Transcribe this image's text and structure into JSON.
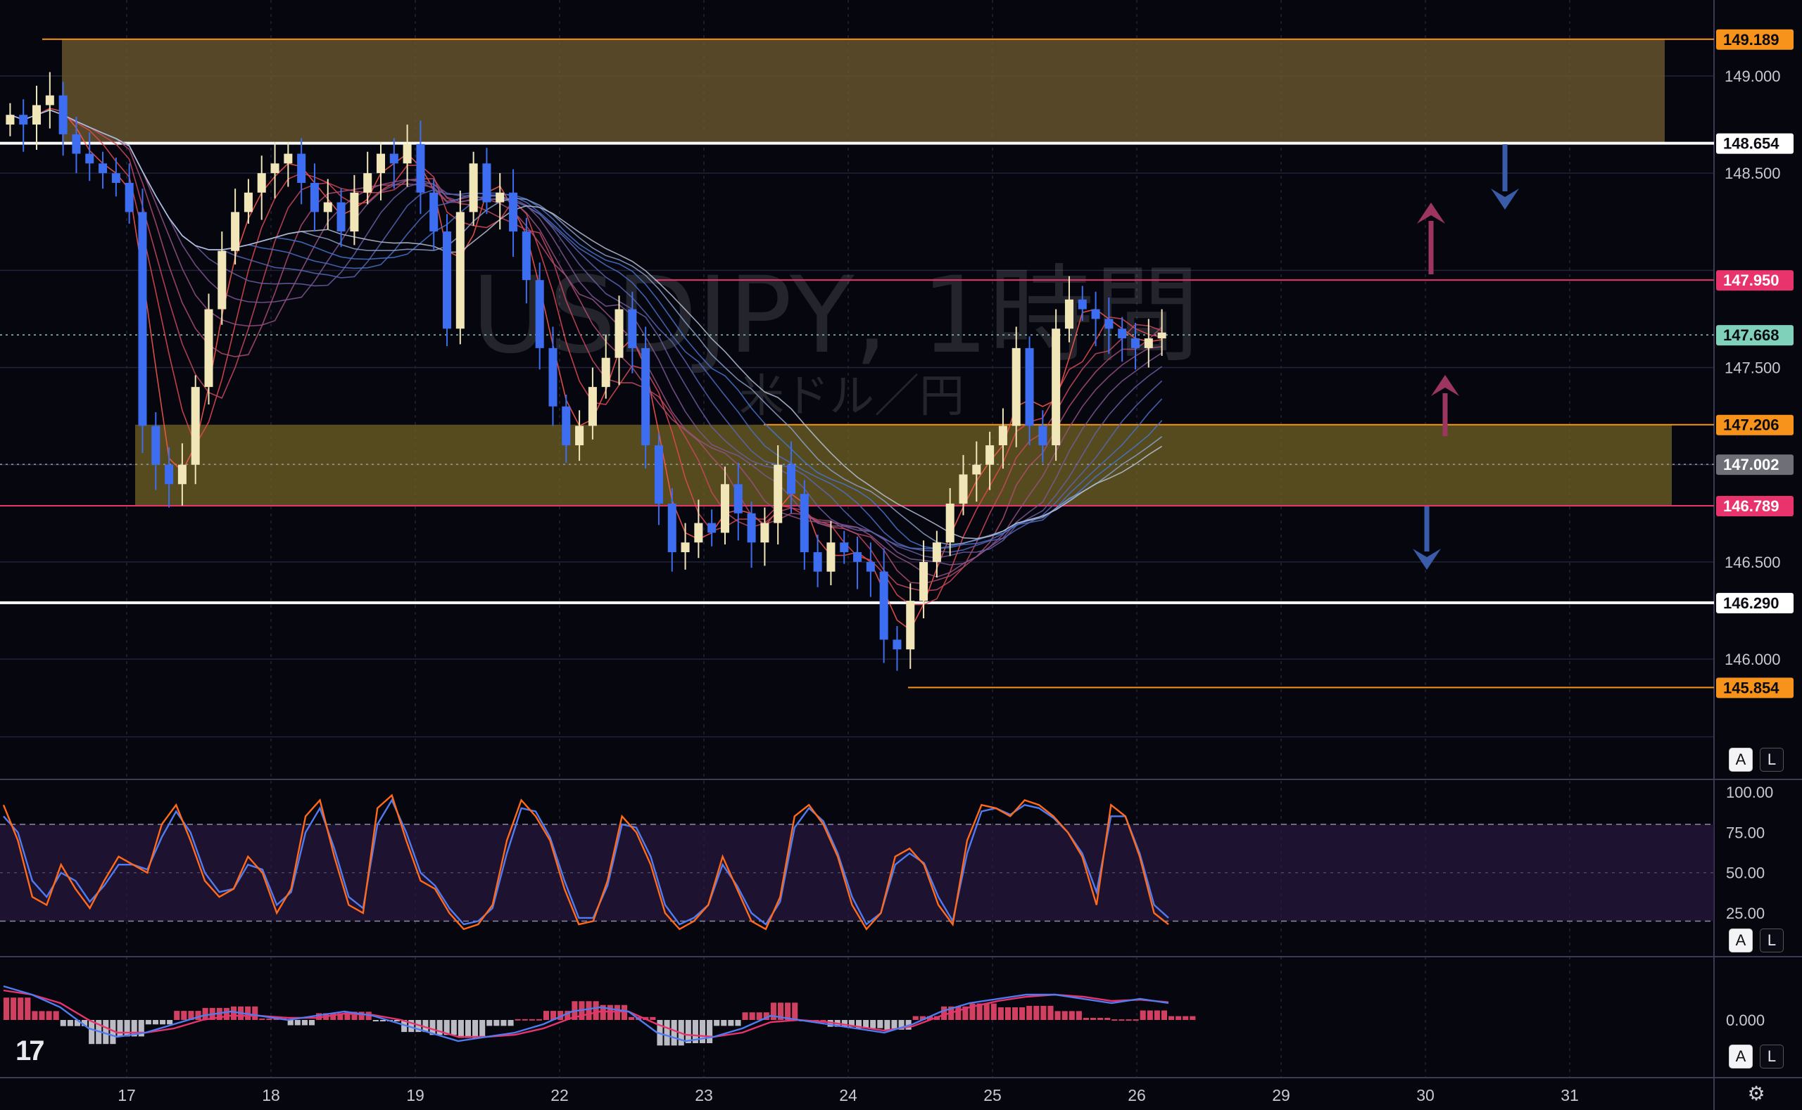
{
  "chart_data": [
    {
      "type": "candlestick",
      "title": "USDJPY, 1時間",
      "subtitle": "米ドル／円",
      "x_ticks": [
        "17",
        "18",
        "19",
        "22",
        "23",
        "24",
        "25",
        "26",
        "29",
        "30",
        "31"
      ],
      "y_ticks": [
        "146.000",
        "146.500",
        "147.500",
        "148.500",
        "149.000"
      ],
      "ylim": [
        145.6,
        149.4
      ],
      "price_labels": [
        {
          "value": "149.189",
          "color": "#f7931a"
        },
        {
          "value": "148.654",
          "color": "#ffffff"
        },
        {
          "value": "147.950",
          "color": "#e8336d"
        },
        {
          "value": "147.668",
          "color": "#7fd1b9"
        },
        {
          "value": "147.206",
          "color": "#f7931a"
        },
        {
          "value": "147.002",
          "color": "#6f6f78"
        },
        {
          "value": "146.789",
          "color": "#e8336d"
        },
        {
          "value": "146.290",
          "color": "#ffffff"
        },
        {
          "value": "145.854",
          "color": "#f7931a"
        }
      ],
      "zones": [
        {
          "name": "upper-resistance-zone",
          "from": 148.654,
          "to": 149.189,
          "color": "#6b5a2e"
        },
        {
          "name": "middle-zone",
          "from": 146.789,
          "to": 147.206,
          "color": "#6b5f22"
        }
      ],
      "horizontal_lines": [
        148.654,
        146.29,
        147.95,
        146.789,
        147.206,
        145.854,
        149.189
      ],
      "arrows": [
        {
          "direction": "down",
          "color": "#3a5ca8",
          "session": "30-31",
          "level": "148.654"
        },
        {
          "direction": "up",
          "color": "#9c3560",
          "session": "30",
          "level": "147.950"
        },
        {
          "direction": "up",
          "color": "#9c3560",
          "session": "30",
          "level": "147.206"
        },
        {
          "direction": "down",
          "color": "#3a5ca8",
          "session": "30",
          "level": "146.789"
        }
      ],
      "colors": {
        "up": "#f0e6b8",
        "down": "#3d6df0"
      },
      "closes": [
        148.8,
        148.75,
        148.85,
        148.9,
        148.7,
        148.6,
        148.55,
        148.5,
        148.45,
        148.3,
        147.2,
        147.0,
        146.9,
        147.0,
        147.4,
        147.8,
        148.1,
        148.3,
        148.4,
        148.5,
        148.55,
        148.6,
        148.45,
        148.3,
        148.35,
        148.2,
        148.4,
        148.5,
        148.6,
        148.55,
        148.65,
        148.4,
        148.2,
        147.7,
        148.3,
        148.55,
        148.35,
        148.4,
        148.2,
        147.95,
        147.6,
        147.3,
        147.1,
        147.2,
        147.4,
        147.55,
        147.8,
        147.6,
        147.1,
        146.8,
        146.55,
        146.6,
        146.7,
        146.65,
        146.9,
        146.75,
        146.6,
        146.7,
        147.0,
        146.85,
        146.55,
        146.45,
        146.6,
        146.55,
        146.5,
        146.45,
        146.1,
        146.05,
        146.3,
        146.5,
        146.6,
        146.8,
        146.95,
        147.0,
        147.1,
        147.2,
        147.6,
        147.2,
        147.1,
        147.7,
        147.85,
        147.8,
        147.75,
        147.7,
        147.65,
        147.6,
        147.65,
        147.68
      ],
      "stochastic_ticks": [
        "100.00",
        "75.00",
        "50.00",
        "25.00"
      ],
      "stoch_k": [
        92,
        70,
        35,
        30,
        55,
        40,
        28,
        45,
        60,
        55,
        50,
        80,
        92,
        70,
        45,
        35,
        40,
        60,
        50,
        25,
        40,
        85,
        95,
        60,
        30,
        25,
        90,
        98,
        70,
        45,
        40,
        25,
        15,
        18,
        30,
        70,
        95,
        85,
        70,
        40,
        18,
        20,
        45,
        85,
        75,
        55,
        25,
        15,
        20,
        30,
        60,
        40,
        20,
        15,
        35,
        85,
        92,
        80,
        60,
        30,
        15,
        25,
        60,
        65,
        55,
        30,
        18,
        70,
        92,
        90,
        85,
        95,
        92,
        85,
        75,
        60,
        30,
        92,
        85,
        60,
        25,
        18
      ],
      "stoch_d": [
        85,
        75,
        45,
        35,
        50,
        45,
        32,
        42,
        55,
        55,
        52,
        72,
        88,
        75,
        50,
        38,
        40,
        55,
        52,
        30,
        38,
        75,
        90,
        65,
        35,
        28,
        80,
        95,
        75,
        50,
        42,
        28,
        18,
        20,
        28,
        62,
        90,
        88,
        72,
        45,
        22,
        22,
        42,
        80,
        78,
        60,
        30,
        18,
        22,
        30,
        55,
        42,
        25,
        18,
        32,
        78,
        90,
        82,
        62,
        35,
        18,
        25,
        55,
        62,
        56,
        35,
        20,
        62,
        88,
        90,
        86,
        92,
        90,
        84,
        75,
        62,
        38,
        85,
        85,
        62,
        30,
        22
      ],
      "macd_line": [
        0.8,
        0.6,
        0.3,
        -0.2,
        -0.4,
        -0.3,
        -0.1,
        0.1,
        0.2,
        0.1,
        0.0,
        0.1,
        0.2,
        0.1,
        -0.1,
        -0.3,
        -0.5,
        -0.4,
        -0.3,
        -0.1,
        0.2,
        0.3,
        0.2,
        -0.3,
        -0.5,
        -0.4,
        -0.2,
        0.1,
        0.0,
        -0.1,
        -0.2,
        -0.3,
        -0.1,
        0.2,
        0.4,
        0.5,
        0.6,
        0.6,
        0.5,
        0.4,
        0.5,
        0.4
      ],
      "macd_signal": [
        0.7,
        0.6,
        0.4,
        0.0,
        -0.3,
        -0.3,
        -0.2,
        0.0,
        0.1,
        0.1,
        0.05,
        0.05,
        0.15,
        0.12,
        0.0,
        -0.2,
        -0.4,
        -0.4,
        -0.35,
        -0.2,
        0.05,
        0.2,
        0.2,
        -0.1,
        -0.35,
        -0.4,
        -0.3,
        -0.05,
        0.0,
        -0.05,
        -0.15,
        -0.25,
        -0.15,
        0.1,
        0.3,
        0.45,
        0.55,
        0.6,
        0.55,
        0.45,
        0.48,
        0.42
      ],
      "macd_ticks": [
        "0.000"
      ]
    }
  ],
  "toolbar": {
    "auto_label": "A",
    "log_label": "L"
  },
  "brand": {
    "logo_text": "17"
  },
  "icons": {
    "settings": "gear-icon"
  }
}
